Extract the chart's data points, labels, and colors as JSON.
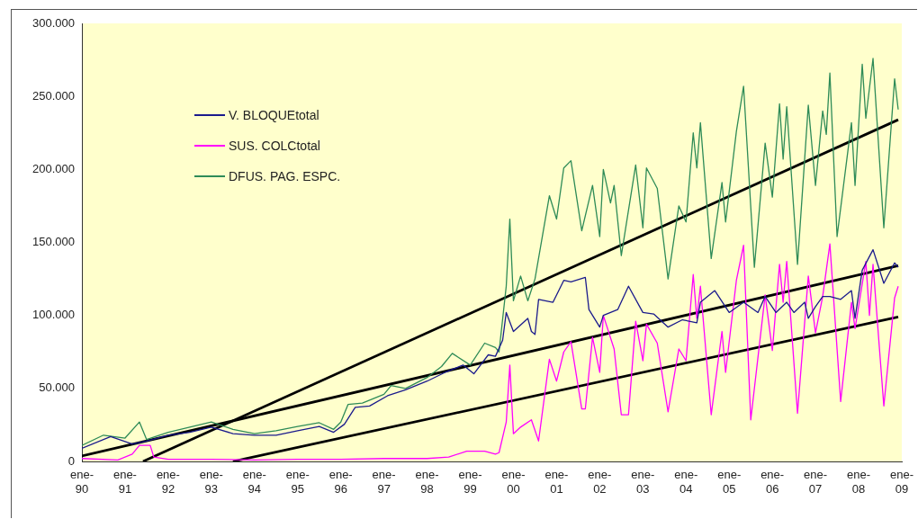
{
  "chart_data": {
    "type": "line",
    "xlim": [
      "1990-01",
      "2009-01"
    ],
    "xticks": [
      {
        "value": "1990-01",
        "label": "ene-\n90"
      },
      {
        "value": "1991-01",
        "label": "ene-\n91"
      },
      {
        "value": "1992-01",
        "label": "ene-\n92"
      },
      {
        "value": "1993-01",
        "label": "ene-\n93"
      },
      {
        "value": "1994-01",
        "label": "ene-\n94"
      },
      {
        "value": "1995-01",
        "label": "ene-\n95"
      },
      {
        "value": "1996-01",
        "label": "ene-\n96"
      },
      {
        "value": "1997-01",
        "label": "ene-\n97"
      },
      {
        "value": "1998-01",
        "label": "ene-\n98"
      },
      {
        "value": "1999-01",
        "label": "ene-\n99"
      },
      {
        "value": "2000-01",
        "label": "ene-\n00"
      },
      {
        "value": "2001-01",
        "label": "ene-\n01"
      },
      {
        "value": "2002-01",
        "label": "ene-\n02"
      },
      {
        "value": "2003-01",
        "label": "ene-\n03"
      },
      {
        "value": "2004-01",
        "label": "ene-\n04"
      },
      {
        "value": "2005-01",
        "label": "ene-\n05"
      },
      {
        "value": "2006-01",
        "label": "ene-\n06"
      },
      {
        "value": "2007-01",
        "label": "ene-\n07"
      },
      {
        "value": "2008-01",
        "label": "ene-\n08"
      },
      {
        "value": "2009-01",
        "label": "ene-\n09"
      }
    ],
    "ylim": [
      0,
      300000
    ],
    "yticks": [
      0,
      {
        "value": 50000,
        "label": "50.000"
      },
      {
        "value": 100000,
        "label": "100.000"
      },
      {
        "value": 150000,
        "label": "150.000"
      },
      {
        "value": 200000,
        "label": "200.000"
      },
      {
        "value": 250000,
        "label": "250.000"
      },
      {
        "value": 300000,
        "label": "300.000"
      }
    ],
    "grid": false,
    "legend": "top left",
    "series": [
      {
        "name": "V. BLOQUEtotal",
        "color": "#1a1a8c",
        "x": [
          "1990-01",
          "1990-09",
          "1991-03",
          "1991-07",
          "1992-01",
          "1992-07",
          "1993-01",
          "1993-07",
          "1994-01",
          "1994-07",
          "1995-01",
          "1995-07",
          "1995-11",
          "1996-02",
          "1996-05",
          "1996-09",
          "1997-02",
          "1997-07",
          "1998-01",
          "1998-06",
          "1998-11",
          "1999-02",
          "1999-06",
          "1999-08",
          "1999-10",
          "1999-11",
          "2000-01",
          "2000-05",
          "2000-06",
          "2000-07",
          "2000-08",
          "2000-12",
          "2001-03",
          "2001-05",
          "2001-09",
          "2001-10",
          "2002-01",
          "2002-02",
          "2002-06",
          "2002-09",
          "2003-01",
          "2003-04",
          "2003-08",
          "2003-12",
          "2004-04",
          "2004-05",
          "2004-09",
          "2005-01",
          "2005-05",
          "2005-09",
          "2005-11",
          "2006-02",
          "2006-05",
          "2006-07",
          "2006-10",
          "2006-11",
          "2007-01",
          "2007-03",
          "2007-05",
          "2007-08",
          "2007-11",
          "2007-12",
          "2008-02",
          "2008-05",
          "2008-08",
          "2008-11",
          "2008-12"
        ],
        "values": [
          9000,
          17000,
          12000,
          14000,
          18000,
          20000,
          23500,
          19000,
          18000,
          18000,
          21000,
          24000,
          20000,
          25500,
          37000,
          38000,
          45000,
          49000,
          55000,
          61000,
          66000,
          60000,
          73000,
          72000,
          83000,
          102000,
          89000,
          98000,
          89000,
          87000,
          111000,
          109000,
          124000,
          123000,
          126000,
          104000,
          92000,
          100000,
          104000,
          120000,
          102000,
          101000,
          92000,
          97000,
          95000,
          109000,
          117000,
          102000,
          109000,
          102000,
          113000,
          102000,
          109000,
          102000,
          109000,
          98000,
          106000,
          113000,
          113000,
          111000,
          117000,
          98000,
          131000,
          145000,
          122000,
          136000,
          133000
        ]
      },
      {
        "name": "SUS. COLCtotal",
        "color": "#ff00ff",
        "x": [
          "1990-01",
          "1990-11",
          "1991-03",
          "1991-05",
          "1991-08",
          "1991-09",
          "1992-01",
          "1993-01",
          "1994-01",
          "1995-01",
          "1996-01",
          "1997-01",
          "1998-01",
          "1998-07",
          "1998-12",
          "1999-05",
          "1999-08",
          "1999-09",
          "1999-11",
          "1999-12",
          "2000-01",
          "2000-03",
          "2000-06",
          "2000-08",
          "2000-11",
          "2001-01",
          "2001-03",
          "2001-05",
          "2001-08",
          "2001-09",
          "2001-11",
          "2002-01",
          "2002-02",
          "2002-05",
          "2002-07",
          "2002-09",
          "2002-11",
          "2003-01",
          "2003-02",
          "2003-05",
          "2003-08",
          "2003-11",
          "2004-01",
          "2004-03",
          "2004-04",
          "2004-05",
          "2004-08",
          "2004-11",
          "2004-12",
          "2005-03",
          "2005-05",
          "2005-07",
          "2005-11",
          "2006-01",
          "2006-03",
          "2006-04",
          "2006-05",
          "2006-08",
          "2006-11",
          "2007-01",
          "2007-03",
          "2007-05",
          "2007-08",
          "2007-11",
          "2007-12",
          "2008-03",
          "2008-04",
          "2008-05",
          "2008-08",
          "2008-11",
          "2008-12"
        ],
        "values": [
          2000,
          1000,
          5000,
          11000,
          11000,
          3000,
          1500,
          1500,
          1000,
          1500,
          1500,
          2000,
          2000,
          3000,
          7000,
          7000,
          5000,
          6000,
          27000,
          66000,
          19000,
          23500,
          28500,
          14000,
          70000,
          55000,
          75000,
          82000,
          36000,
          36000,
          85000,
          61000,
          100000,
          77000,
          32000,
          32000,
          96000,
          69000,
          94000,
          81000,
          34000,
          77000,
          69000,
          128000,
          98000,
          120000,
          32000,
          89000,
          61000,
          124000,
          148000,
          28500,
          114000,
          76000,
          135000,
          109000,
          137000,
          33000,
          127000,
          88000,
          113000,
          149000,
          41000,
          109000,
          91000,
          137000,
          100000,
          135000,
          38000,
          112000,
          120000
        ]
      },
      {
        "name": "DFUS. PAG. ESPC.",
        "color": "#2e8b57",
        "x": [
          "1990-01",
          "1990-07",
          "1991-01",
          "1991-05",
          "1991-07",
          "1992-01",
          "1992-07",
          "1993-01",
          "1993-07",
          "1994-01",
          "1994-07",
          "1995-01",
          "1995-07",
          "1995-11",
          "1996-01",
          "1996-03",
          "1996-07",
          "1997-01",
          "1997-03",
          "1997-07",
          "1998-01",
          "1998-05",
          "1998-08",
          "1999-01",
          "1999-05",
          "1999-08",
          "1999-09",
          "1999-11",
          "1999-12",
          "2000-01",
          "2000-03",
          "2000-05",
          "2000-07",
          "2000-11",
          "2001-01",
          "2001-03",
          "2001-05",
          "2001-08",
          "2001-11",
          "2002-01",
          "2002-02",
          "2002-04",
          "2002-05",
          "2002-07",
          "2002-11",
          "2003-01",
          "2003-02",
          "2003-05",
          "2003-08",
          "2003-11",
          "2004-01",
          "2004-03",
          "2004-04",
          "2004-05",
          "2004-08",
          "2004-11",
          "2004-12",
          "2005-03",
          "2005-05",
          "2005-08",
          "2005-11",
          "2006-01",
          "2006-03",
          "2006-04",
          "2006-05",
          "2006-08",
          "2006-11",
          "2007-01",
          "2007-03",
          "2007-04",
          "2007-05",
          "2007-07",
          "2007-11",
          "2007-12",
          "2008-02",
          "2008-03",
          "2008-05",
          "2008-08",
          "2008-11",
          "2008-12"
        ],
        "values": [
          11000,
          18000,
          16000,
          27000,
          15000,
          20000,
          23500,
          27000,
          22000,
          19000,
          21000,
          24000,
          26500,
          22000,
          27000,
          39000,
          40000,
          46000,
          52000,
          50000,
          57500,
          65000,
          74000,
          66000,
          81000,
          78000,
          75000,
          120000,
          166000,
          110000,
          127000,
          110000,
          125000,
          182000,
          166000,
          201000,
          206000,
          158000,
          189000,
          154000,
          200000,
          177000,
          189000,
          141000,
          203000,
          160000,
          201000,
          187000,
          125000,
          175000,
          164000,
          225000,
          201000,
          232000,
          139000,
          191000,
          164000,
          226000,
          257000,
          133000,
          218000,
          181000,
          245000,
          207000,
          243000,
          135000,
          244000,
          189000,
          240000,
          224000,
          266000,
          154000,
          232000,
          189000,
          272000,
          235000,
          276000,
          160000,
          262000,
          241000
        ]
      },
      {
        "color": "#000000",
        "x": [
          "1990-01",
          "2008-12"
        ],
        "values": [
          3700,
          134000
        ]
      },
      {
        "color": "#000000",
        "x": [
          "1991-06",
          "2008-12"
        ],
        "values": [
          0,
          234000
        ]
      },
      {
        "color": "#000000",
        "x": [
          "1993-07",
          "2008-12"
        ],
        "values": [
          0,
          99000
        ]
      }
    ]
  }
}
